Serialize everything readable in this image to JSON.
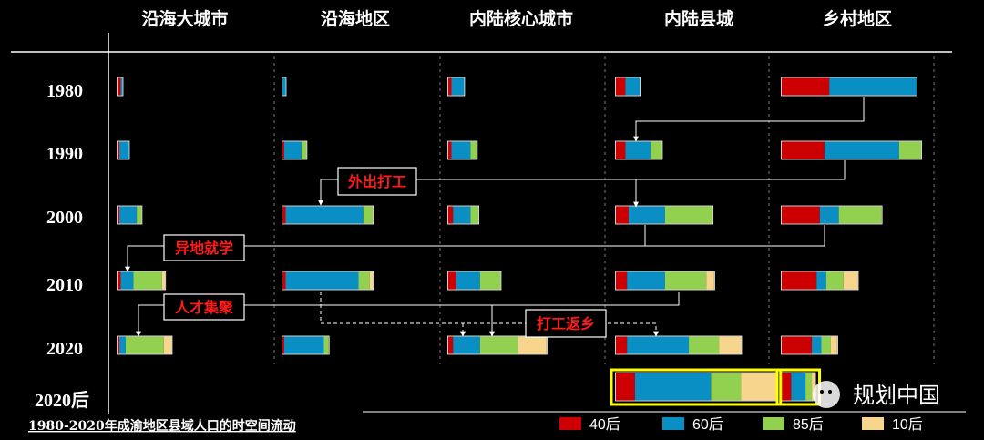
{
  "chart_data": {
    "type": "bar",
    "title": "1980-2020年成渝地区县域人口的时空间流动",
    "columns": [
      "沿海大城市",
      "沿海地区",
      "内陆核心城市",
      "内陆县城",
      "乡村地区"
    ],
    "years": [
      "1980",
      "1990",
      "2000",
      "2010",
      "2020",
      "2020后"
    ],
    "series": [
      {
        "name": "40后",
        "color": "#cc0000"
      },
      {
        "name": "60后",
        "color": "#0a8fc4"
      },
      {
        "name": "85后",
        "color": "#92d050"
      },
      {
        "name": "10后",
        "color": "#f7d58c"
      }
    ],
    "values": {
      "沿海大城市": [
        [
          2,
          1,
          0,
          0
        ],
        [
          1,
          6,
          0,
          0
        ],
        [
          1,
          11,
          3,
          0
        ],
        [
          2,
          8,
          18,
          2
        ],
        [
          1,
          4,
          24,
          5
        ],
        null
      ],
      "沿海地区": [
        [
          0,
          2,
          0,
          0
        ],
        [
          1,
          11,
          3,
          0
        ],
        [
          2,
          49,
          6,
          0
        ],
        [
          2,
          46,
          7,
          2
        ],
        [
          1,
          25,
          3,
          0
        ],
        null
      ],
      "内陆核心城市": [
        [
          2,
          8,
          0,
          0
        ],
        [
          2,
          12,
          4,
          0
        ],
        [
          3,
          11,
          5,
          0
        ],
        [
          5,
          15,
          13,
          0
        ],
        [
          3,
          17,
          24,
          18
        ],
        null
      ],
      "内陆县城": [
        [
          6,
          9,
          0,
          0
        ],
        [
          6,
          16,
          7,
          0
        ],
        [
          8,
          23,
          30,
          0
        ],
        [
          7,
          24,
          26,
          5
        ],
        [
          7,
          39,
          19,
          14
        ],
        [
          12,
          48,
          19,
          22
        ]
      ],
      "乡村地区": [
        [
          30,
          55,
          0,
          0
        ],
        [
          27,
          47,
          14,
          0
        ],
        [
          24,
          12,
          27,
          0
        ],
        [
          22,
          6,
          11,
          9
        ],
        [
          19,
          6,
          6,
          4
        ],
        [
          6,
          9,
          4,
          2
        ]
      ]
    },
    "annotations": [
      "外出打工",
      "异地就学",
      "人才集聚",
      "打工返乡"
    ],
    "highlighted_row": "2020后"
  },
  "watermark": "规划中国"
}
